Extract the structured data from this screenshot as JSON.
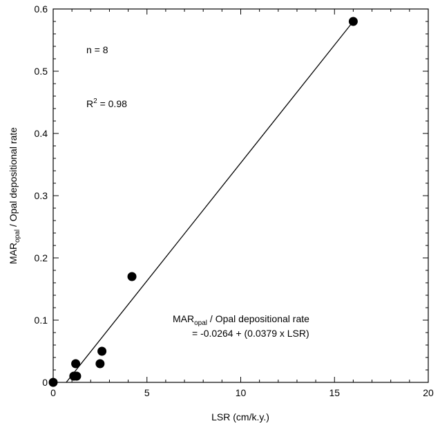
{
  "chart_data": {
    "type": "scatter",
    "xlabel": "LSR (cm/k.y.)",
    "ylabel": {
      "prefix": "MAR",
      "subscript": "opal",
      "suffix": " / Opal depositional rate"
    },
    "xlim": [
      0,
      20
    ],
    "ylim": [
      0,
      0.6
    ],
    "x_ticks": [
      0,
      5,
      10,
      15,
      20
    ],
    "x_tick_labels": [
      "0",
      "5",
      "10",
      "15",
      "20"
    ],
    "y_ticks": [
      0,
      0.1,
      0.2,
      0.3,
      0.4,
      0.5,
      0.6
    ],
    "y_tick_labels": [
      "0",
      "0.1",
      "0.2",
      "0.3",
      "0.4",
      "0.5",
      "0.6"
    ],
    "x_minor_step": 1,
    "y_minor_step": 0.02,
    "grid": false,
    "points": [
      {
        "x": 0.0,
        "y": 0.0
      },
      {
        "x": 1.1,
        "y": 0.01
      },
      {
        "x": 1.25,
        "y": 0.01
      },
      {
        "x": 1.2,
        "y": 0.03
      },
      {
        "x": 2.5,
        "y": 0.03
      },
      {
        "x": 2.6,
        "y": 0.05
      },
      {
        "x": 4.2,
        "y": 0.17
      },
      {
        "x": 16.0,
        "y": 0.58
      }
    ],
    "fit_line": {
      "intercept": -0.0264,
      "slope": 0.0379,
      "x_start": 0.7,
      "x_end": 16.0
    },
    "annotations": {
      "n": "n = 8",
      "r2_prefix": "R",
      "r2_sup": "2",
      "r2_suffix": " = 0.98",
      "equation_prefix": "MAR",
      "equation_sub": "opal",
      "equation_suffix": " / Opal depositional rate",
      "equation_line2": "= -0.0264 + (0.0379 x LSR)"
    }
  }
}
